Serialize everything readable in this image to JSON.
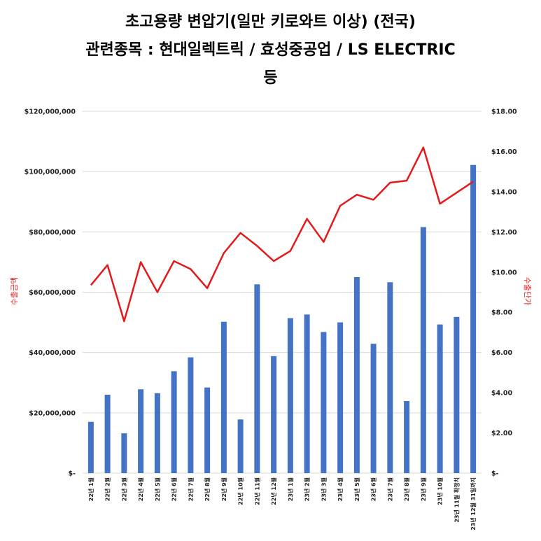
{
  "chart_data": {
    "type": "bar+line",
    "title_lines": [
      "초고용량 변압기(일만 키로와트 이상) (전국)",
      "관련종목 : 현대일렉트릭 / 효성중공업 / LS ELECTRIC",
      "등"
    ],
    "ylabel_left": "수출금액",
    "ylabel_right": "수출단가",
    "ylim_left": [
      0,
      120000000
    ],
    "ylim_right": [
      0,
      18
    ],
    "yticks_left": [
      "$-",
      "$20,000,000",
      "$40,000,000",
      "$60,000,000",
      "$80,000,000",
      "$100,000,000",
      "$120,000,000"
    ],
    "yticks_right": [
      "$-",
      "$2.00",
      "$4.00",
      "$6.00",
      "$8.00",
      "$10.00",
      "$12.00",
      "$14.00",
      "$16.00",
      "$18.00"
    ],
    "categories": [
      "22년 1월",
      "22년 2월",
      "22년 3월",
      "22년 4월",
      "22년 5월",
      "22년 6월",
      "22년 7월",
      "22년 8월",
      "22년 9월",
      "22년 10월",
      "22년 11월",
      "22년 12월",
      "23년 1월",
      "23년 2월",
      "23년 3월",
      "23년 4월",
      "23년 5월",
      "23년 6월",
      "23년 7월",
      "23년 8월",
      "23년 9월",
      "23년 10월",
      "23년 11월 확정치",
      "23년 12월 31일까지"
    ],
    "series": [
      {
        "name": "수출금액",
        "type": "bar",
        "color": "#4472C4",
        "axis": "left",
        "values": [
          17000000,
          26000000,
          13200000,
          27800000,
          26500000,
          33800000,
          38400000,
          28400000,
          50200000,
          17800000,
          62600000,
          38800000,
          51400000,
          52600000,
          46800000,
          50000000,
          65000000,
          42900000,
          63300000,
          23900000,
          81600000,
          49300000,
          51800000,
          102200000
        ]
      },
      {
        "name": "수출단가",
        "type": "line",
        "color": "#E31A1C",
        "axis": "right",
        "values": [
          9.35,
          10.35,
          7.55,
          10.5,
          9.0,
          10.55,
          10.15,
          9.2,
          10.95,
          11.95,
          11.3,
          10.55,
          11.05,
          12.65,
          11.5,
          13.3,
          13.85,
          13.6,
          14.45,
          14.55,
          16.2,
          13.4,
          13.95,
          14.5
        ]
      }
    ],
    "grid": "horizontal",
    "legend": "none"
  }
}
